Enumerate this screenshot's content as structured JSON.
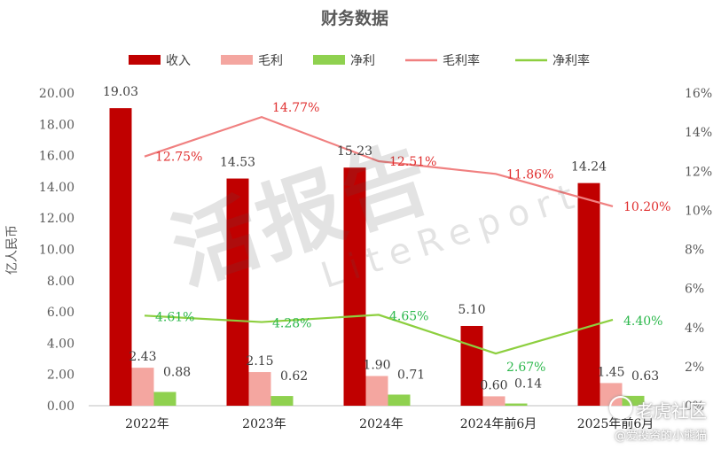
{
  "chart_data": {
    "type": "bar",
    "title": "财务数据",
    "categories": [
      "2022年",
      "2023年",
      "2024年",
      "2024年前6月",
      "2025年前6月"
    ],
    "ylabel": "亿人民币",
    "ylim": [
      0,
      20
    ],
    "yticks": [
      "0.00",
      "2.00",
      "4.00",
      "6.00",
      "8.00",
      "10.00",
      "12.00",
      "14.00",
      "16.00",
      "18.00",
      "20.00"
    ],
    "y2lim": [
      0,
      16
    ],
    "y2ticks": [
      "0%",
      "2%",
      "4%",
      "6%",
      "8%",
      "10%",
      "12%",
      "14%",
      "16%"
    ],
    "legend_position": "top",
    "series": [
      {
        "name": "收入",
        "kind": "bar",
        "axis": "left",
        "color": "#C00000",
        "values": [
          19.03,
          14.53,
          15.23,
          5.1,
          14.24
        ],
        "labels": [
          "19.03",
          "14.53",
          "15.23",
          "5.10",
          "14.24"
        ]
      },
      {
        "name": "毛利",
        "kind": "bar",
        "axis": "left",
        "color": "#F4A6A0",
        "values": [
          2.43,
          2.15,
          1.9,
          0.6,
          1.45
        ],
        "labels": [
          "2.43",
          "2.15",
          "1.90",
          "0.60",
          "1.45"
        ]
      },
      {
        "name": "净利",
        "kind": "bar",
        "axis": "left",
        "color": "#8FD14F",
        "values": [
          0.88,
          0.62,
          0.71,
          0.14,
          0.63
        ],
        "labels": [
          "0.88",
          "0.62",
          "0.71",
          "0.14",
          "0.63"
        ]
      },
      {
        "name": "毛利率",
        "kind": "line",
        "axis": "right",
        "color": "#F08080",
        "label_color": "#E03030",
        "values": [
          12.75,
          14.77,
          12.51,
          11.86,
          10.2
        ],
        "labels": [
          "12.75%",
          "14.77%",
          "12.51%",
          "11.86%",
          "10.20%"
        ]
      },
      {
        "name": "净利率",
        "kind": "line",
        "axis": "right",
        "color": "#8DCF3F",
        "label_color": "#2DB84D",
        "values": [
          4.61,
          4.28,
          4.65,
          2.67,
          4.4
        ],
        "labels": [
          "4.61%",
          "4.28%",
          "4.65%",
          "2.67%",
          "4.40%"
        ]
      }
    ]
  },
  "watermark": {
    "main": "活报告",
    "sub": "LiteReport"
  },
  "credits": {
    "top": "老虎社区",
    "bottom": "@爱投资的小熊猫"
  }
}
